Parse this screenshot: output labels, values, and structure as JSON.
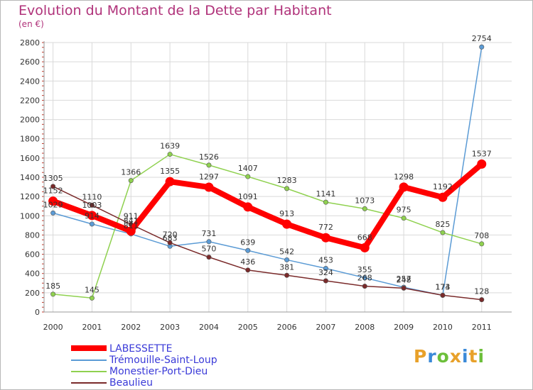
{
  "chart_data": {
    "type": "line",
    "title": "Evolution du Montant de la Dette par Habitant",
    "subtitle": "(en €)",
    "xlabel": "",
    "ylabel": "",
    "x": [
      "2000",
      "2001",
      "2002",
      "2003",
      "2004",
      "2005",
      "2006",
      "2007",
      "2008",
      "2009",
      "2010",
      "2011"
    ],
    "ylim": [
      0,
      2800
    ],
    "yticks": [
      0,
      200,
      400,
      600,
      800,
      1000,
      1200,
      1400,
      1600,
      1800,
      2000,
      2200,
      2400,
      2600,
      2800
    ],
    "grid": true,
    "legend_position": "bottom-left",
    "series": [
      {
        "name": "LABESSETTE",
        "color": "#ff0000",
        "values": [
          1152,
          1003,
          841,
          1355,
          1297,
          1091,
          913,
          772,
          668,
          1298,
          1192,
          1537
        ]
      },
      {
        "name": "Trémouille-Saint-Loup",
        "color": "#5b9bd5",
        "values": [
          1029,
          914,
          811,
          683,
          731,
          639,
          542,
          453,
          355,
          257,
          173,
          2754
        ]
      },
      {
        "name": "Monestier-Port-Dieu",
        "color": "#8fd14f",
        "values": [
          185,
          145,
          1366,
          1639,
          1526,
          1407,
          1283,
          1141,
          1073,
          975,
          825,
          708
        ]
      },
      {
        "name": "Beaulieu",
        "color": "#7a2a2a",
        "values": [
          1305,
          1110,
          911,
          720,
          570,
          436,
          381,
          324,
          268,
          248,
          174,
          128
        ]
      }
    ]
  },
  "brand": {
    "letters": [
      "P",
      "r",
      "o",
      "x",
      "i",
      "t",
      "i"
    ],
    "colors": [
      "#e8a12a",
      "#3b8ad8",
      "#6cbf3a",
      "#e8a12a",
      "#3b8ad8",
      "#e8a12a",
      "#6cbf3a"
    ]
  }
}
